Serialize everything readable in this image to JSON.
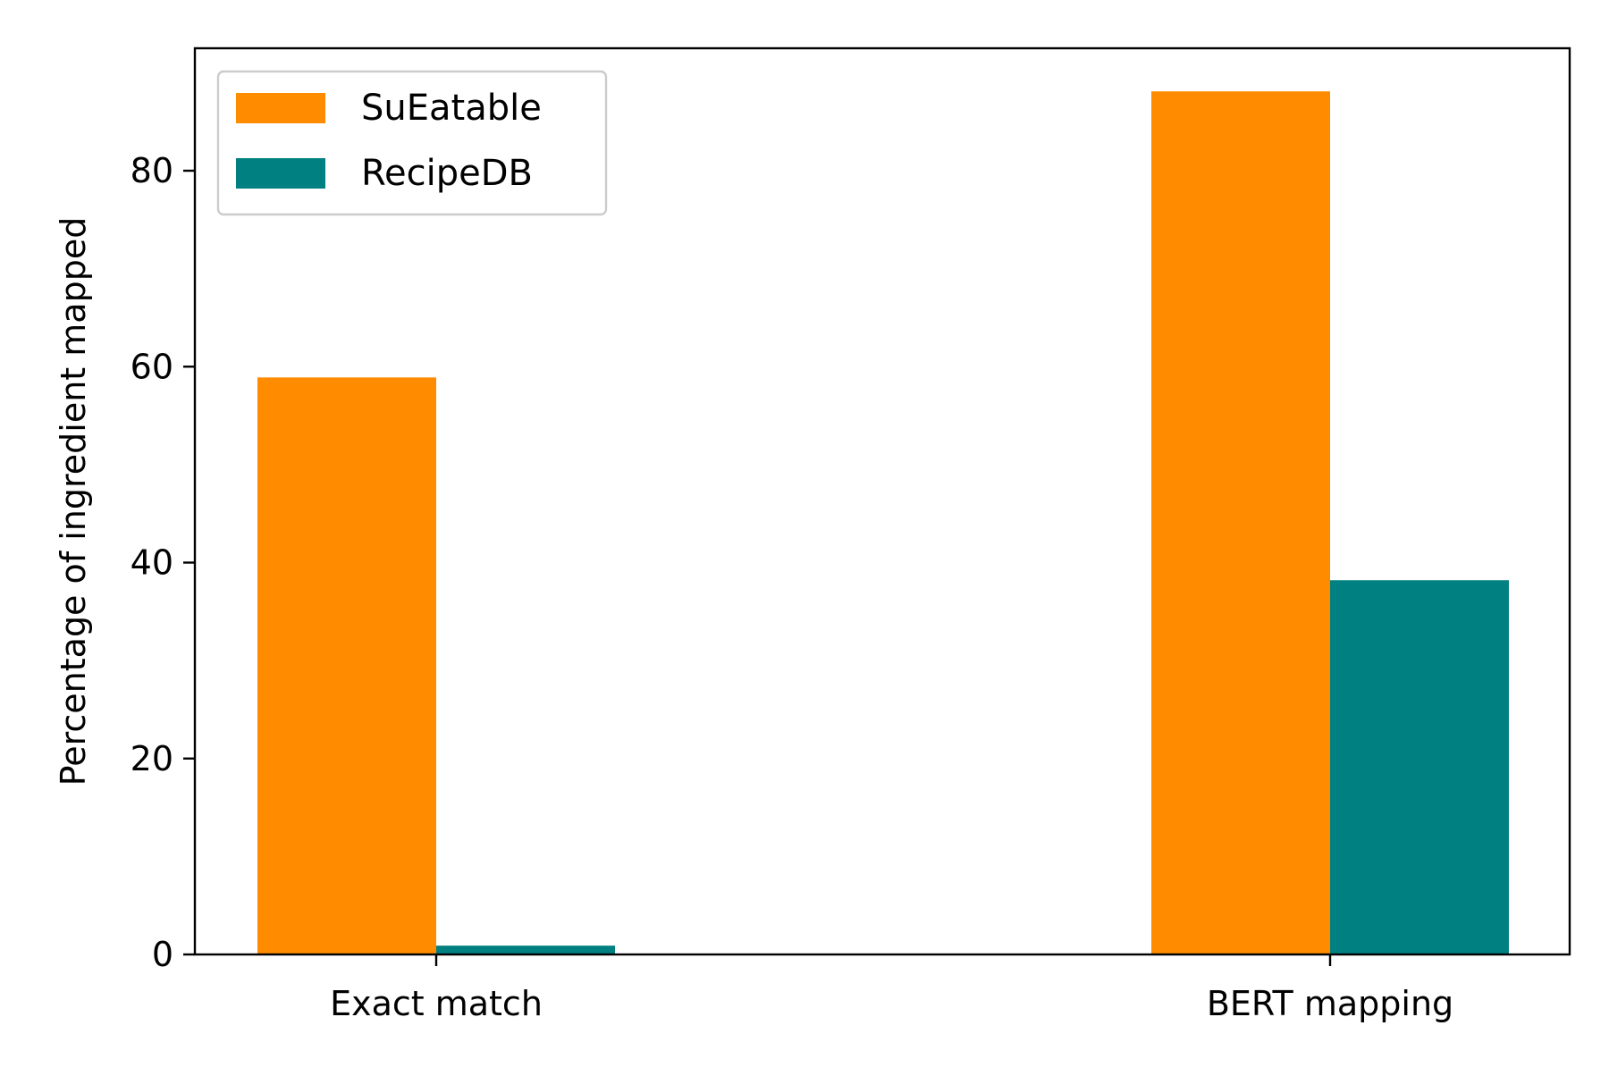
{
  "chart_data": {
    "type": "bar",
    "title": "",
    "xlabel": "",
    "ylabel": "Percentage of ingredient mapped",
    "categories": [
      "Exact match",
      "BERT mapping"
    ],
    "series": [
      {
        "name": "SuEatable",
        "values": [
          58.9,
          88.1
        ],
        "color": "#ff8c00"
      },
      {
        "name": "RecipeDB",
        "values": [
          0.9,
          38.2
        ],
        "color": "#008080"
      }
    ],
    "ylim": [
      0,
      92.5
    ],
    "yticks": [
      0,
      20,
      40,
      60,
      80
    ],
    "grid": false,
    "legend_position": "top-left"
  }
}
